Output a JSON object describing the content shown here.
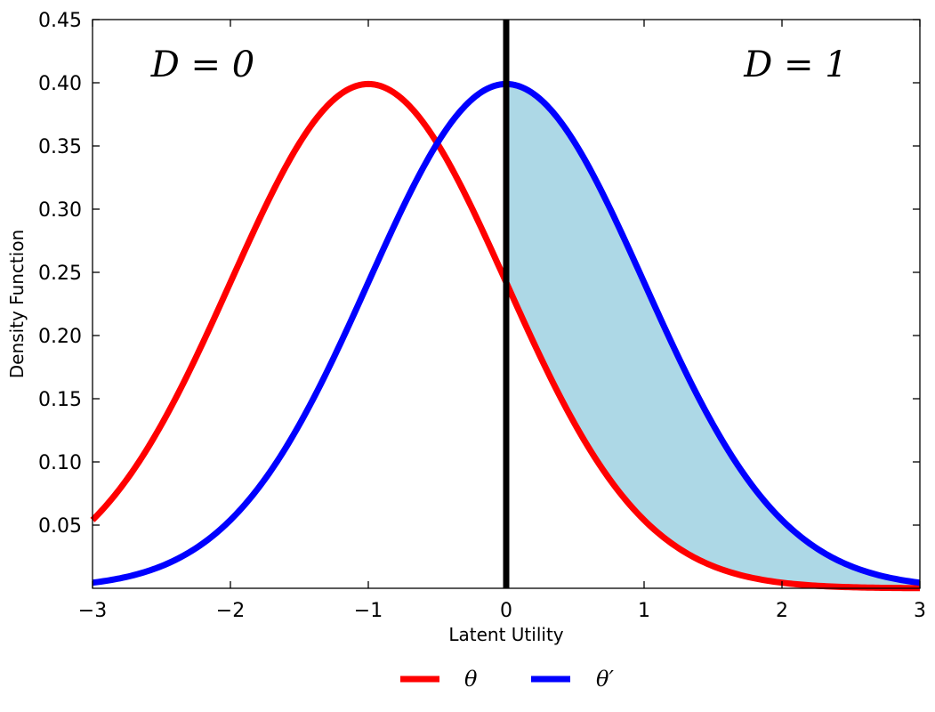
{
  "chart_data": {
    "type": "line",
    "xlabel": "Latent Utility",
    "ylabel": "Density Function",
    "xlim": [
      -3,
      3
    ],
    "ylim": [
      0,
      0.45
    ],
    "x_ticks": [
      -3,
      -2,
      -1,
      0,
      1,
      2,
      3
    ],
    "x_tick_labels": [
      "−3",
      "−2",
      "−1",
      "0",
      "1",
      "2",
      "3"
    ],
    "y_ticks": [
      0.05,
      0.1,
      0.15,
      0.2,
      0.25,
      0.3,
      0.35,
      0.4,
      0.45
    ],
    "y_tick_labels": [
      "0.05",
      "0.10",
      "0.15",
      "0.20",
      "0.25",
      "0.30",
      "0.35",
      "0.40",
      "0.45"
    ],
    "grid": false,
    "legend_position": "bottom-center",
    "series": [
      {
        "name": "θ",
        "color": "#ff0000",
        "x": [
          -3.0,
          -2.5,
          -2.0,
          -1.5,
          -1.0,
          -0.5,
          0.0,
          0.5,
          1.0,
          1.5,
          2.0,
          2.5,
          3.0
        ],
        "y": [
          0.054,
          0.13,
          0.242,
          0.352,
          0.399,
          0.352,
          0.242,
          0.13,
          0.054,
          0.018,
          0.004,
          0.001,
          0.0
        ]
      },
      {
        "name": "θ′",
        "color": "#0000ff",
        "x": [
          -3.0,
          -2.5,
          -2.0,
          -1.5,
          -1.0,
          -0.5,
          0.0,
          0.5,
          1.0,
          1.5,
          2.0,
          2.5,
          3.0
        ],
        "y": [
          0.004,
          0.018,
          0.054,
          0.13,
          0.242,
          0.352,
          0.399,
          0.352,
          0.242,
          0.13,
          0.054,
          0.018,
          0.004
        ]
      }
    ],
    "vertical_line": {
      "x": 0,
      "color": "#000000"
    },
    "shaded_region": {
      "between": [
        "θ",
        "θ′"
      ],
      "x_from": 0,
      "x_to": 3,
      "color": "#add8e6"
    },
    "annotations": [
      {
        "text": "D = 0",
        "x": -2.2,
        "y": 0.405
      },
      {
        "text": "D = 1",
        "x": 2.1,
        "y": 0.405
      }
    ]
  }
}
